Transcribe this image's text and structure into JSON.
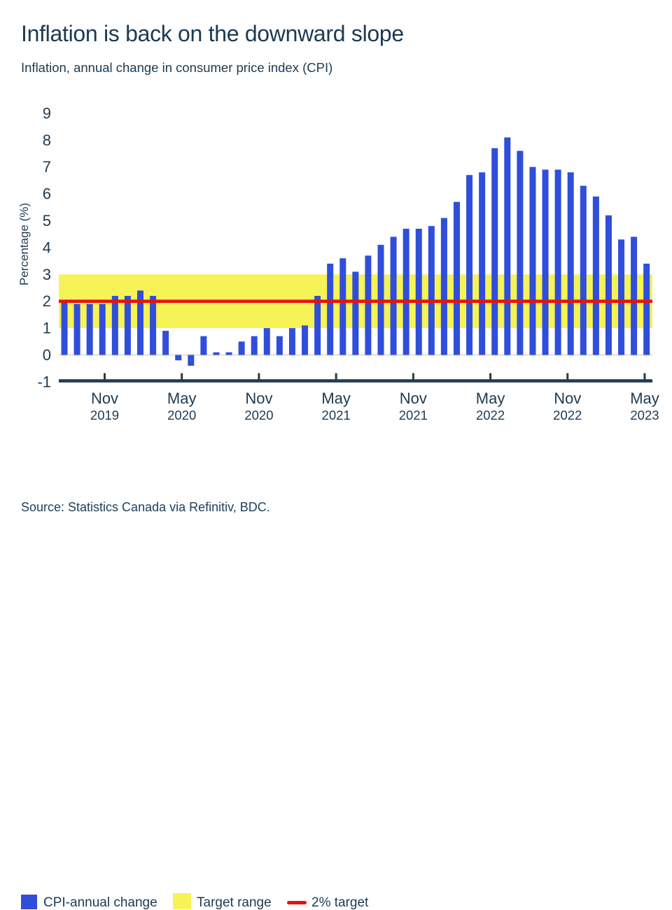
{
  "header": {
    "title": "Inflation is back on the downward slope",
    "subtitle": "Inflation, annual change in consumer price index (CPI)"
  },
  "chart_data": {
    "type": "bar",
    "title": "Inflation is back on the downward slope",
    "subtitle": "Inflation, annual change in consumer price index (CPI)",
    "ylabel": "Percentage (%)",
    "xlabel": "",
    "ylim": [
      -1,
      9
    ],
    "grid": false,
    "y_ticks": [
      9,
      8,
      7,
      6,
      5,
      4,
      3,
      2,
      1,
      0,
      -1
    ],
    "x_ticks": [
      {
        "month": "Nov",
        "year": "2019"
      },
      {
        "month": "May",
        "year": "2020"
      },
      {
        "month": "Nov",
        "year": "2020"
      },
      {
        "month": "May",
        "year": "2021"
      },
      {
        "month": "Nov",
        "year": "2021"
      },
      {
        "month": "May",
        "year": "2022"
      },
      {
        "month": "Nov",
        "year": "2022"
      },
      {
        "month": "May",
        "year": "2023"
      }
    ],
    "series_name": "CPI-annual change",
    "categories": [
      "Jul 2019",
      "Aug 2019",
      "Sep 2019",
      "Oct 2019",
      "Nov 2019",
      "Dec 2019",
      "Jan 2020",
      "Feb 2020",
      "Mar 2020",
      "Apr 2020",
      "May 2020",
      "Jun 2020",
      "Jul 2020",
      "Aug 2020",
      "Sep 2020",
      "Oct 2020",
      "Nov 2020",
      "Dec 2020",
      "Jan 2021",
      "Feb 2021",
      "Mar 2021",
      "Apr 2021",
      "May 2021",
      "Jun 2021",
      "Jul 2021",
      "Aug 2021",
      "Sep 2021",
      "Oct 2021",
      "Nov 2021",
      "Dec 2021",
      "Jan 2022",
      "Feb 2022",
      "Mar 2022",
      "Apr 2022",
      "May 2022",
      "Jun 2022",
      "Jul 2022",
      "Aug 2022",
      "Sep 2022",
      "Oct 2022",
      "Nov 2022",
      "Dec 2022",
      "Jan 2023",
      "Feb 2023",
      "Mar 2023",
      "Apr 2023",
      "May 2023"
    ],
    "values": [
      2.0,
      1.9,
      1.9,
      1.9,
      2.2,
      2.2,
      2.4,
      2.2,
      0.9,
      -0.2,
      -0.4,
      0.7,
      0.1,
      0.1,
      0.5,
      0.7,
      1.0,
      0.7,
      1.0,
      1.1,
      2.2,
      3.4,
      3.6,
      3.1,
      3.7,
      4.1,
      4.4,
      4.7,
      4.7,
      4.8,
      5.1,
      5.7,
      6.7,
      6.8,
      7.7,
      8.1,
      7.6,
      7.0,
      6.9,
      6.9,
      6.8,
      6.3,
      5.9,
      5.2,
      4.3,
      4.4,
      3.4
    ],
    "target_range": [
      1,
      3
    ],
    "target_line": 2,
    "legend_position": "bottom"
  },
  "legend": [
    {
      "label": "CPI-annual change",
      "swatch": "blue-square"
    },
    {
      "label": "Target range",
      "swatch": "yellow-square"
    },
    {
      "label": "2% target",
      "swatch": "red-line"
    }
  ],
  "source": "Source: Statistics Canada via Refinitiv, BDC.",
  "colors": {
    "bar_blue": "#2F4EDC",
    "band_yellow": "#F6F356",
    "target_red": "#E8120B",
    "text_navy": "#1D3A52",
    "axis_dark": "#243B4E",
    "zero_line": "#EAE3DB",
    "background": "#FFFFFF"
  }
}
